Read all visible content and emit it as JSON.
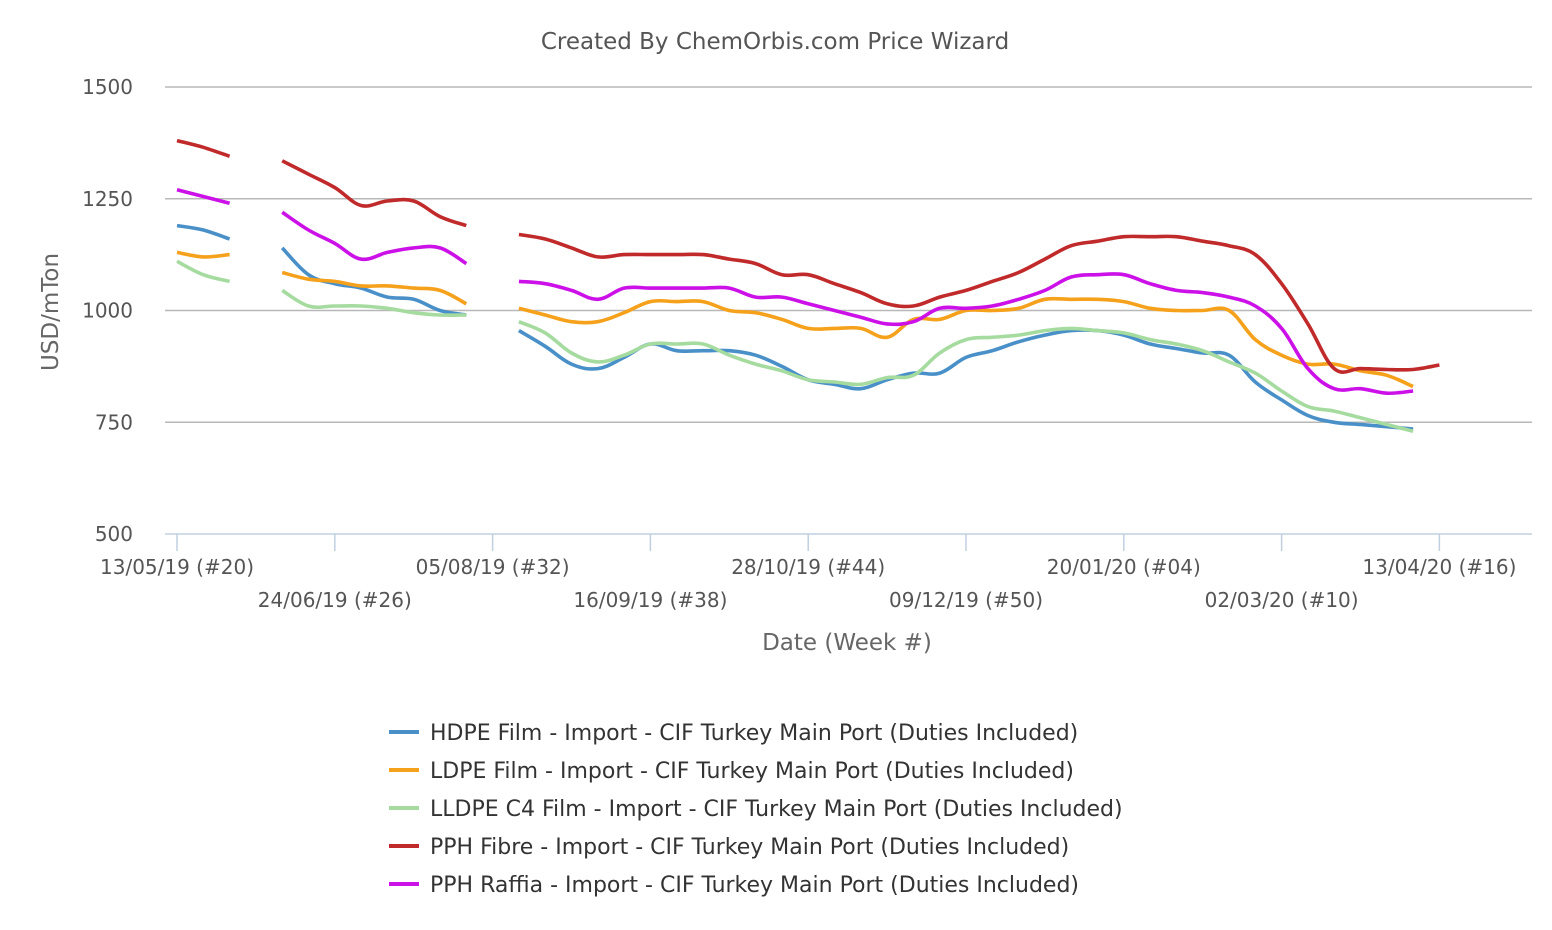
{
  "chart_data": {
    "type": "line",
    "title": "Created By ChemOrbis.com Price Wizard",
    "xlabel": "Date (Week #)",
    "ylabel": "USD/mTon",
    "ylim": [
      500,
      1500
    ],
    "yticks": [
      500,
      750,
      1000,
      1250,
      1500
    ],
    "grid": true,
    "legend_position": "bottom",
    "x_tick_labels": [
      "13/05/19 (#20)",
      "24/06/19 (#26)",
      "05/08/19 (#32)",
      "16/09/19 (#38)",
      "28/10/19 (#44)",
      "09/12/19 (#50)",
      "20/01/20 (#04)",
      "02/03/20 (#10)",
      "13/04/20 (#16)"
    ],
    "x": [
      "13/05/19",
      "20/05/19",
      "27/05/19",
      "03/06/19",
      "10/06/19",
      "17/06/19",
      "24/06/19",
      "01/07/19",
      "08/07/19",
      "15/07/19",
      "22/07/19",
      "29/07/19",
      "05/08/19",
      "12/08/19",
      "19/08/19",
      "26/08/19",
      "02/09/19",
      "09/09/19",
      "16/09/19",
      "23/09/19",
      "30/09/19",
      "07/10/19",
      "14/10/19",
      "21/10/19",
      "28/10/19",
      "04/11/19",
      "11/11/19",
      "18/11/19",
      "25/11/19",
      "02/12/19",
      "09/12/19",
      "16/12/19",
      "23/12/19",
      "30/12/19",
      "06/01/20",
      "13/01/20",
      "20/01/20",
      "27/01/20",
      "03/02/20",
      "10/02/20",
      "17/02/20",
      "24/02/20",
      "02/03/20",
      "09/03/20",
      "16/03/20",
      "23/03/20",
      "30/03/20",
      "06/04/20",
      "13/04/20",
      "20/04/20",
      "27/04/20"
    ],
    "series": [
      {
        "name": "HDPE Film - Import - CIF Turkey Main Port (Duties Included)",
        "color": "#4a90c8",
        "values": [
          1190,
          1180,
          1160,
          null,
          1140,
          1080,
          1060,
          1050,
          1030,
          1025,
          1000,
          990,
          null,
          955,
          920,
          880,
          870,
          895,
          925,
          910,
          910,
          910,
          900,
          875,
          845,
          835,
          825,
          845,
          860,
          860,
          895,
          910,
          930,
          945,
          955,
          955,
          945,
          925,
          915,
          905,
          900,
          840,
          800,
          765,
          750,
          745,
          740,
          735,
          null,
          null,
          null
        ]
      },
      {
        "name": "LDPE Film - Import - CIF Turkey Main Port (Duties Included)",
        "color": "#f5a11b",
        "values": [
          1130,
          1120,
          1125,
          null,
          1085,
          1070,
          1065,
          1055,
          1055,
          1050,
          1045,
          1015,
          null,
          1005,
          990,
          975,
          975,
          995,
          1020,
          1020,
          1020,
          1000,
          995,
          980,
          960,
          960,
          960,
          940,
          980,
          980,
          1000,
          1000,
          1005,
          1025,
          1025,
          1025,
          1020,
          1005,
          1000,
          1000,
          1000,
          935,
          900,
          880,
          880,
          865,
          855,
          830,
          null,
          null,
          null
        ]
      },
      {
        "name": "LLDPE C4 Film - Import - CIF Turkey Main Port (Duties Included)",
        "color": "#a6dba0",
        "values": [
          1110,
          1080,
          1065,
          null,
          1045,
          1010,
          1010,
          1010,
          1005,
          995,
          990,
          990,
          null,
          975,
          950,
          905,
          885,
          900,
          925,
          925,
          925,
          900,
          880,
          865,
          845,
          840,
          835,
          850,
          855,
          905,
          935,
          940,
          945,
          955,
          960,
          955,
          950,
          935,
          925,
          910,
          885,
          860,
          820,
          785,
          775,
          760,
          745,
          730,
          null,
          null,
          null
        ]
      },
      {
        "name": "PPH Fibre - Import - CIF Turkey Main Port (Duties Included)",
        "color": "#c12a2a",
        "values": [
          1380,
          1365,
          1345,
          null,
          1335,
          1305,
          1275,
          1235,
          1245,
          1245,
          1210,
          1190,
          null,
          1170,
          1160,
          1140,
          1120,
          1125,
          1125,
          1125,
          1125,
          1115,
          1105,
          1080,
          1080,
          1060,
          1040,
          1015,
          1010,
          1030,
          1045,
          1065,
          1085,
          1115,
          1145,
          1155,
          1165,
          1165,
          1165,
          1155,
          1145,
          1125,
          1060,
          970,
          870,
          870,
          868,
          868,
          878,
          null,
          null
        ]
      },
      {
        "name": "PPH Raffia - Import - CIF Turkey Main Port (Duties Included)",
        "color": "#cc11e8",
        "values": [
          1270,
          1255,
          1240,
          null,
          1220,
          1180,
          1150,
          1115,
          1130,
          1140,
          1140,
          1105,
          null,
          1065,
          1060,
          1045,
          1025,
          1050,
          1050,
          1050,
          1050,
          1050,
          1030,
          1030,
          1015,
          1000,
          985,
          970,
          975,
          1005,
          1005,
          1010,
          1025,
          1045,
          1075,
          1080,
          1080,
          1060,
          1045,
          1040,
          1030,
          1010,
          960,
          870,
          825,
          825,
          815,
          820,
          null,
          null,
          null
        ]
      }
    ]
  }
}
